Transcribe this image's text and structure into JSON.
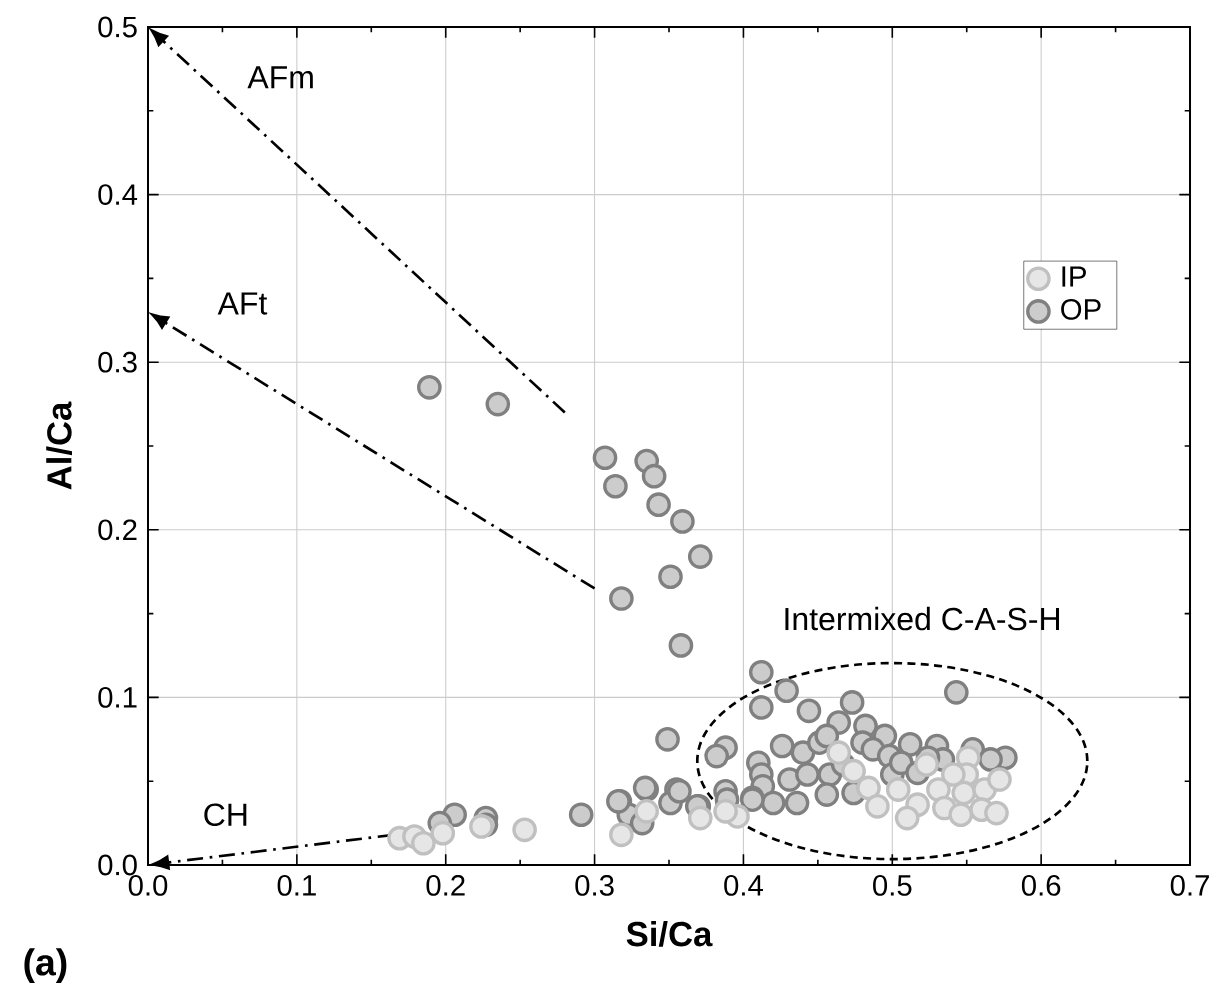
{
  "chart_data": {
    "type": "scatter",
    "xlabel": "Si/Ca",
    "ylabel": "Al/Ca",
    "xlim": [
      0,
      0.7
    ],
    "ylim": [
      0,
      0.5
    ],
    "xticks": [
      {
        "value": 0,
        "label": "0.0"
      },
      0.1,
      0.2,
      0.3,
      0.4,
      0.5,
      0.6,
      0.7
    ],
    "yticks": [
      {
        "value": 0,
        "label": "0.0"
      },
      0.1,
      0.2,
      0.3,
      0.4,
      0.5
    ],
    "grid": true,
    "legend": "right",
    "marker": "circle",
    "annotations": [
      "AFm",
      "AFt",
      "CH",
      "Intermixed C-A-S-H",
      "(a)"
    ],
    "series": [
      {
        "name": "OP",
        "color": "#808080",
        "x": [
          0.189,
          0.235,
          0.307,
          0.335,
          0.34,
          0.314,
          0.343,
          0.359,
          0.371,
          0.351,
          0.318,
          0.358,
          0.349,
          0.206,
          0.227,
          0.227,
          0.196,
          0.291,
          0.317,
          0.335,
          0.355,
          0.351,
          0.323,
          0.332,
          0.37,
          0.412,
          0.429,
          0.412,
          0.444,
          0.543,
          0.473,
          0.464,
          0.482,
          0.495,
          0.388,
          0.382,
          0.426,
          0.44,
          0.451,
          0.456,
          0.48,
          0.487,
          0.498,
          0.512,
          0.53,
          0.554,
          0.576,
          0.566,
          0.41,
          0.412,
          0.413,
          0.406,
          0.42,
          0.431,
          0.436,
          0.443,
          0.458,
          0.456,
          0.474,
          0.467,
          0.5,
          0.506,
          0.517,
          0.534,
          0.524,
          0.357,
          0.334,
          0.316,
          0.388,
          0.389,
          0.369,
          0.406
        ],
        "values": [
          0.285,
          0.275,
          0.243,
          0.241,
          0.232,
          0.226,
          0.215,
          0.205,
          0.184,
          0.172,
          0.159,
          0.131,
          0.075,
          0.03,
          0.028,
          0.024,
          0.025,
          0.03,
          0.038,
          0.045,
          0.045,
          0.037,
          0.03,
          0.025,
          0.035,
          0.115,
          0.104,
          0.094,
          0.092,
          0.103,
          0.097,
          0.085,
          0.083,
          0.077,
          0.07,
          0.065,
          0.071,
          0.067,
          0.073,
          0.077,
          0.073,
          0.069,
          0.065,
          0.072,
          0.071,
          0.069,
          0.064,
          0.063,
          0.061,
          0.054,
          0.047,
          0.04,
          0.037,
          0.051,
          0.037,
          0.054,
          0.054,
          0.042,
          0.043,
          0.06,
          0.054,
          0.061,
          0.055,
          0.063,
          0.064,
          0.044,
          0.046,
          0.038,
          0.044,
          0.039,
          0.035,
          0.039
        ]
      },
      {
        "name": "IP",
        "color": "#c0c0c0",
        "x": [
          0.169,
          0.179,
          0.185,
          0.198,
          0.224,
          0.253,
          0.318,
          0.335,
          0.371,
          0.396,
          0.388,
          0.464,
          0.474,
          0.484,
          0.49,
          0.523,
          0.551,
          0.55,
          0.531,
          0.548,
          0.562,
          0.572,
          0.517,
          0.535,
          0.56,
          0.57,
          0.51,
          0.546,
          0.504,
          0.541
        ],
        "values": [
          0.016,
          0.017,
          0.013,
          0.019,
          0.023,
          0.021,
          0.018,
          0.032,
          0.028,
          0.029,
          0.032,
          0.067,
          0.056,
          0.046,
          0.035,
          0.06,
          0.064,
          0.054,
          0.045,
          0.043,
          0.045,
          0.051,
          0.036,
          0.034,
          0.033,
          0.031,
          0.028,
          0.03,
          0.045,
          0.054
        ]
      }
    ]
  }
}
